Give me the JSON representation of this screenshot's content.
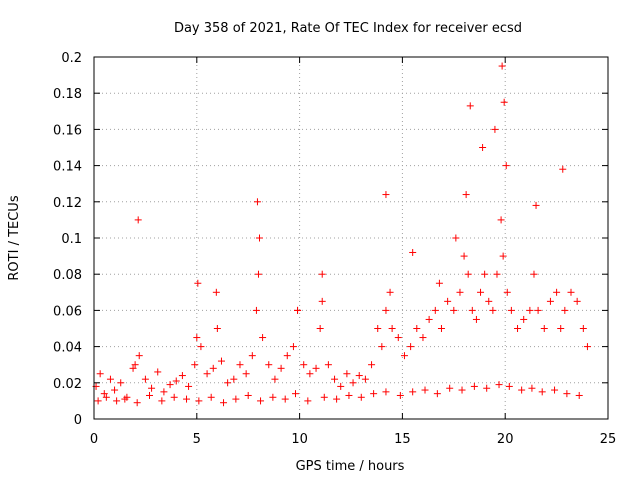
{
  "chart_data": {
    "type": "scatter",
    "title": "Day 358 of 2021, Rate Of TEC Index for receiver ecsd",
    "xlabel": "GPS time / hours",
    "ylabel": "ROTI / TECUs",
    "xlim": [
      0,
      25
    ],
    "ylim": [
      0,
      0.2
    ],
    "xticks": [
      0,
      5,
      10,
      15,
      20,
      25
    ],
    "xtick_labels": [
      "0",
      "5",
      "10",
      "15",
      "20",
      "25"
    ],
    "yticks": [
      0,
      0.02,
      0.04,
      0.06,
      0.08,
      0.1,
      0.12,
      0.14,
      0.16,
      0.18,
      0.2
    ],
    "ytick_labels": [
      "0",
      "0.02",
      "0.04",
      "0.06",
      "0.08",
      "0.1",
      "0.12",
      "0.14",
      "0.16",
      "0.18",
      "0.2"
    ],
    "grid": true,
    "marker": "+",
    "color": "#ff0000",
    "series": [
      {
        "name": "ROTI",
        "x": [
          0.1,
          0.3,
          0.5,
          0.8,
          1.0,
          1.3,
          1.6,
          1.9,
          2.0,
          2.2,
          2.5,
          2.8,
          3.1,
          3.4,
          3.7,
          4.0,
          4.3,
          4.6,
          4.9,
          5.0,
          5.2,
          5.5,
          5.8,
          6.0,
          6.2,
          6.5,
          6.8,
          7.1,
          7.4,
          7.7,
          7.9,
          8.0,
          8.2,
          8.5,
          8.8,
          9.1,
          9.4,
          9.7,
          9.9,
          10.2,
          10.5,
          10.8,
          11.0,
          11.1,
          11.4,
          11.7,
          12.0,
          12.3,
          12.6,
          12.9,
          13.2,
          13.5,
          13.8,
          14.0,
          14.2,
          14.4,
          14.5,
          14.8,
          15.1,
          15.4,
          15.7,
          16.0,
          16.3,
          16.6,
          16.9,
          17.2,
          17.5,
          17.8,
          18.0,
          18.2,
          18.4,
          18.6,
          18.8,
          19.0,
          19.2,
          19.4,
          19.6,
          19.8,
          19.9,
          20.1,
          20.3,
          20.6,
          20.9,
          21.2,
          21.4,
          21.6,
          21.9,
          22.2,
          22.5,
          22.7,
          22.9,
          23.2,
          23.5,
          23.8,
          24.0,
          0.2,
          0.6,
          1.1,
          1.5,
          2.1,
          2.7,
          3.3,
          3.9,
          4.5,
          5.1,
          5.7,
          6.3,
          6.9,
          7.5,
          8.1,
          8.7,
          9.3,
          9.8,
          10.4,
          11.2,
          11.8,
          12.4,
          13.0,
          13.6,
          14.2,
          14.9,
          15.5,
          16.1,
          16.7,
          17.3,
          17.9,
          18.5,
          19.1,
          19.7,
          20.2,
          20.8,
          21.3,
          21.8,
          22.4,
          23.0,
          23.6,
          18.1,
          18.3,
          18.9,
          19.5,
          19.85,
          19.95,
          20.05,
          17.6,
          16.8,
          22.8,
          21.5,
          14.2,
          15.5,
          2.15,
          7.95,
          8.05,
          9.9,
          11.1,
          5.05,
          5.95
        ],
        "y": [
          0.018,
          0.025,
          0.014,
          0.022,
          0.016,
          0.02,
          0.012,
          0.028,
          0.03,
          0.035,
          0.022,
          0.017,
          0.026,
          0.015,
          0.019,
          0.021,
          0.024,
          0.018,
          0.03,
          0.045,
          0.04,
          0.025,
          0.028,
          0.05,
          0.032,
          0.02,
          0.022,
          0.03,
          0.025,
          0.035,
          0.06,
          0.08,
          0.045,
          0.03,
          0.022,
          0.028,
          0.035,
          0.04,
          0.06,
          0.03,
          0.025,
          0.028,
          0.05,
          0.065,
          0.03,
          0.022,
          0.018,
          0.025,
          0.02,
          0.024,
          0.022,
          0.03,
          0.05,
          0.04,
          0.06,
          0.07,
          0.05,
          0.045,
          0.035,
          0.04,
          0.05,
          0.045,
          0.055,
          0.06,
          0.05,
          0.065,
          0.06,
          0.07,
          0.09,
          0.08,
          0.06,
          0.055,
          0.07,
          0.08,
          0.065,
          0.06,
          0.08,
          0.11,
          0.09,
          0.07,
          0.06,
          0.05,
          0.055,
          0.06,
          0.08,
          0.06,
          0.05,
          0.065,
          0.07,
          0.05,
          0.06,
          0.07,
          0.065,
          0.05,
          0.04,
          0.01,
          0.012,
          0.01,
          0.011,
          0.009,
          0.013,
          0.01,
          0.012,
          0.011,
          0.01,
          0.012,
          0.009,
          0.011,
          0.013,
          0.01,
          0.012,
          0.011,
          0.014,
          0.01,
          0.012,
          0.011,
          0.013,
          0.012,
          0.014,
          0.015,
          0.013,
          0.015,
          0.016,
          0.014,
          0.017,
          0.016,
          0.018,
          0.017,
          0.019,
          0.018,
          0.016,
          0.017,
          0.015,
          0.016,
          0.014,
          0.013,
          0.124,
          0.173,
          0.15,
          0.16,
          0.195,
          0.175,
          0.14,
          0.1,
          0.075,
          0.138,
          0.118,
          0.124,
          0.092,
          0.11,
          0.12,
          0.1,
          0.06,
          0.08,
          0.075,
          0.07
        ]
      }
    ]
  }
}
